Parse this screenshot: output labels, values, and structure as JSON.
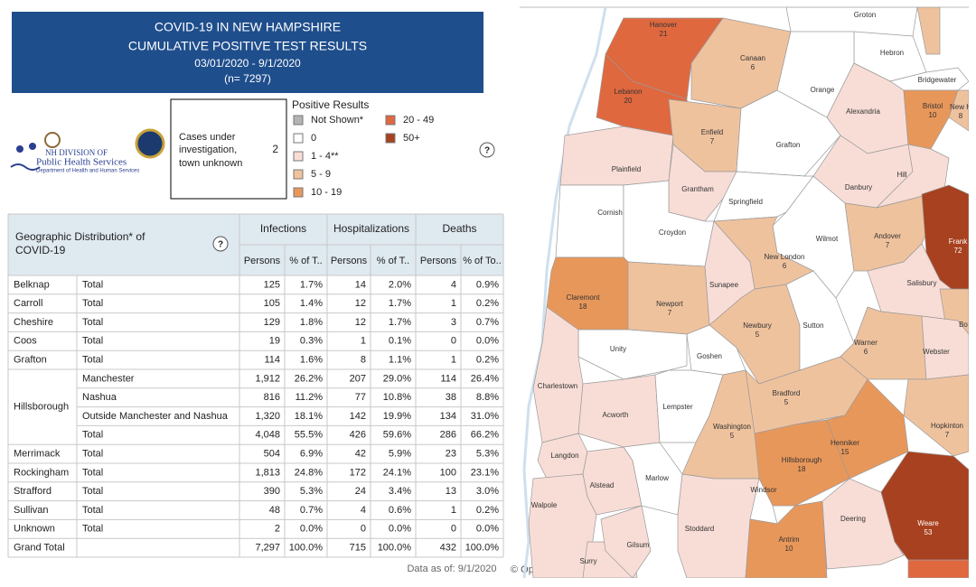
{
  "title": {
    "lines": [
      "COVID-19 IN NEW HAMPSHIRE",
      "CUMULATIVE POSITIVE TEST RESULTS",
      "03/01/2020 - 9/1/2020",
      "(n= 7297)"
    ]
  },
  "logo": {
    "line1": "NH DIVISION OF",
    "line2": "Public Health Services",
    "line3": "Department of Health and Human Services"
  },
  "unknown_box": {
    "lines": [
      "Cases under",
      "investigation,",
      "town unknown"
    ],
    "value": 2
  },
  "help_icon": "?",
  "legend": {
    "title": "Positive Results",
    "items": [
      {
        "label": "Not Shown*",
        "color": "#b3b3b3"
      },
      {
        "label": "0",
        "color": "#ffffff"
      },
      {
        "label": "1 - 4**",
        "color": "#f8ddd6"
      },
      {
        "label": "5 - 9",
        "color": "#efc29e"
      },
      {
        "label": "10 - 19",
        "color": "#e8975a"
      },
      {
        "label": "20 - 49",
        "color": "#e0683f"
      },
      {
        "label": "50+",
        "color": "#a8411f"
      }
    ]
  },
  "table": {
    "corner": "Geographic Distribution* of COVID-19",
    "groups_header": [
      "Infections",
      "Hospitalizations",
      "Deaths"
    ],
    "columns": [
      "Persons",
      "% of T..",
      "Persons",
      "% of T..",
      "Persons",
      "% of To.."
    ],
    "groups": [
      {
        "county": "Belknap",
        "rows": [
          {
            "label": "Total",
            "cells": [
              "125",
              "1.7%",
              "14",
              "2.0%",
              "4",
              "0.9%"
            ]
          }
        ]
      },
      {
        "county": "Carroll",
        "rows": [
          {
            "label": "Total",
            "cells": [
              "105",
              "1.4%",
              "12",
              "1.7%",
              "1",
              "0.2%"
            ]
          }
        ]
      },
      {
        "county": "Cheshire",
        "rows": [
          {
            "label": "Total",
            "cells": [
              "129",
              "1.8%",
              "12",
              "1.7%",
              "3",
              "0.7%"
            ]
          }
        ]
      },
      {
        "county": "Coos",
        "rows": [
          {
            "label": "Total",
            "cells": [
              "19",
              "0.3%",
              "1",
              "0.1%",
              "0",
              "0.0%"
            ]
          }
        ]
      },
      {
        "county": "Grafton",
        "rows": [
          {
            "label": "Total",
            "cells": [
              "114",
              "1.6%",
              "8",
              "1.1%",
              "1",
              "0.2%"
            ]
          }
        ]
      },
      {
        "county": "Hillsborough",
        "rows": [
          {
            "label": "Manchester",
            "cells": [
              "1,912",
              "26.2%",
              "207",
              "29.0%",
              "114",
              "26.4%"
            ]
          },
          {
            "label": "Nashua",
            "cells": [
              "816",
              "11.2%",
              "77",
              "10.8%",
              "38",
              "8.8%"
            ]
          },
          {
            "label": "Outside Manchester and Nashua",
            "cells": [
              "1,320",
              "18.1%",
              "142",
              "19.9%",
              "134",
              "31.0%"
            ]
          },
          {
            "label": "Total",
            "cells": [
              "4,048",
              "55.5%",
              "426",
              "59.6%",
              "286",
              "66.2%"
            ]
          }
        ]
      },
      {
        "county": "Merrimack",
        "rows": [
          {
            "label": "Total",
            "cells": [
              "504",
              "6.9%",
              "42",
              "5.9%",
              "23",
              "5.3%"
            ]
          }
        ]
      },
      {
        "county": "Rockingham",
        "rows": [
          {
            "label": "Total",
            "cells": [
              "1,813",
              "24.8%",
              "172",
              "24.1%",
              "100",
              "23.1%"
            ]
          }
        ]
      },
      {
        "county": "Strafford",
        "rows": [
          {
            "label": "Total",
            "cells": [
              "390",
              "5.3%",
              "24",
              "3.4%",
              "13",
              "3.0%"
            ]
          }
        ]
      },
      {
        "county": "Sullivan",
        "rows": [
          {
            "label": "Total",
            "cells": [
              "48",
              "0.7%",
              "4",
              "0.6%",
              "1",
              "0.2%"
            ]
          }
        ]
      },
      {
        "county": "Unknown",
        "rows": [
          {
            "label": "Total",
            "cells": [
              "2",
              "0.0%",
              "0",
              "0.0%",
              "0",
              "0.0%"
            ]
          }
        ]
      }
    ],
    "grand_total": {
      "label": "Grand Total",
      "cells": [
        "7,297",
        "100.0%",
        "715",
        "100.0%",
        "432",
        "100.0%"
      ]
    }
  },
  "footer": {
    "data_as_of": "Data as of:  9/1/2020",
    "attribution": "© OpenStreetMap"
  },
  "map": {
    "towns": [
      {
        "name": "Groton",
        "value": null,
        "color": "#ffffff"
      },
      {
        "name": "Hanover",
        "value": 21,
        "color": "#e0683f"
      },
      {
        "name": "Canaan",
        "value": 6,
        "color": "#efc29e"
      },
      {
        "name": "Hebron",
        "value": null,
        "color": "#ffffff"
      },
      {
        "name": "Orange",
        "value": null,
        "color": "#ffffff"
      },
      {
        "name": "Lebanon",
        "value": 20,
        "color": "#e0683f"
      },
      {
        "name": "Bridgewater",
        "value": null,
        "color": "#ffffff"
      },
      {
        "name": "Alexandria",
        "value": null,
        "color": "#f8ddd6"
      },
      {
        "name": "Bristol",
        "value": 10,
        "color": "#e8975a"
      },
      {
        "name": "New H",
        "value": 8,
        "color": "#efc29e"
      },
      {
        "name": "Enfield",
        "value": 7,
        "color": "#efc29e"
      },
      {
        "name": "Grafton",
        "value": null,
        "color": "#ffffff"
      },
      {
        "name": "Plainfield",
        "value": null,
        "color": "#f8ddd6"
      },
      {
        "name": "Danbury",
        "value": null,
        "color": "#f8ddd6"
      },
      {
        "name": "Hill",
        "value": null,
        "color": "#f8ddd6"
      },
      {
        "name": "Grantham",
        "value": null,
        "color": "#f8ddd6"
      },
      {
        "name": "Springfield",
        "value": null,
        "color": "#ffffff"
      },
      {
        "name": "Cornish",
        "value": null,
        "color": "#ffffff"
      },
      {
        "name": "Croydon",
        "value": null,
        "color": "#ffffff"
      },
      {
        "name": "Wilmot",
        "value": null,
        "color": "#ffffff"
      },
      {
        "name": "Andover",
        "value": 7,
        "color": "#efc29e"
      },
      {
        "name": "Frank",
        "value": 72,
        "color": "#a8411f"
      },
      {
        "name": "New London",
        "value": 6,
        "color": "#efc29e"
      },
      {
        "name": "Salisbury",
        "value": null,
        "color": "#f8ddd6"
      },
      {
        "name": "Sunapee",
        "value": null,
        "color": "#f8ddd6"
      },
      {
        "name": "Claremont",
        "value": 18,
        "color": "#e8975a"
      },
      {
        "name": "Newport",
        "value": 7,
        "color": "#efc29e"
      },
      {
        "name": "Newbury",
        "value": 5,
        "color": "#efc29e"
      },
      {
        "name": "Sutton",
        "value": null,
        "color": "#ffffff"
      },
      {
        "name": "Bo",
        "value": null,
        "color": "#efc29e"
      },
      {
        "name": "Unity",
        "value": null,
        "color": "#ffffff"
      },
      {
        "name": "Goshen",
        "value": null,
        "color": "#ffffff"
      },
      {
        "name": "Warner",
        "value": 6,
        "color": "#efc29e"
      },
      {
        "name": "Webster",
        "value": null,
        "color": "#f8ddd6"
      },
      {
        "name": "Charlestown",
        "value": null,
        "color": "#f8ddd6"
      },
      {
        "name": "Bradford",
        "value": 5,
        "color": "#efc29e"
      },
      {
        "name": "Acworth",
        "value": null,
        "color": "#f8ddd6"
      },
      {
        "name": "Lempster",
        "value": null,
        "color": "#ffffff"
      },
      {
        "name": "Washington",
        "value": 5,
        "color": "#efc29e"
      },
      {
        "name": "Hopkinton",
        "value": 7,
        "color": "#efc29e"
      },
      {
        "name": "Langdon",
        "value": null,
        "color": "#f8ddd6"
      },
      {
        "name": "Hillsborough",
        "value": 18,
        "color": "#e8975a"
      },
      {
        "name": "Henniker",
        "value": 15,
        "color": "#e8975a"
      },
      {
        "name": "Alstead",
        "value": null,
        "color": "#f8ddd6"
      },
      {
        "name": "Marlow",
        "value": null,
        "color": "#ffffff"
      },
      {
        "name": "Windsor",
        "value": null,
        "color": "#ffffff"
      },
      {
        "name": "Walpole",
        "value": null,
        "color": "#f8ddd6"
      },
      {
        "name": "Stoddard",
        "value": null,
        "color": "#f8ddd6"
      },
      {
        "name": "Antrim",
        "value": 10,
        "color": "#e8975a"
      },
      {
        "name": "Deering",
        "value": null,
        "color": "#f8ddd6"
      },
      {
        "name": "Weare",
        "value": 53,
        "color": "#a8411f"
      },
      {
        "name": "Surry",
        "value": null,
        "color": "#f8ddd6"
      },
      {
        "name": "Gilsum",
        "value": null,
        "color": "#f8ddd6"
      }
    ]
  }
}
